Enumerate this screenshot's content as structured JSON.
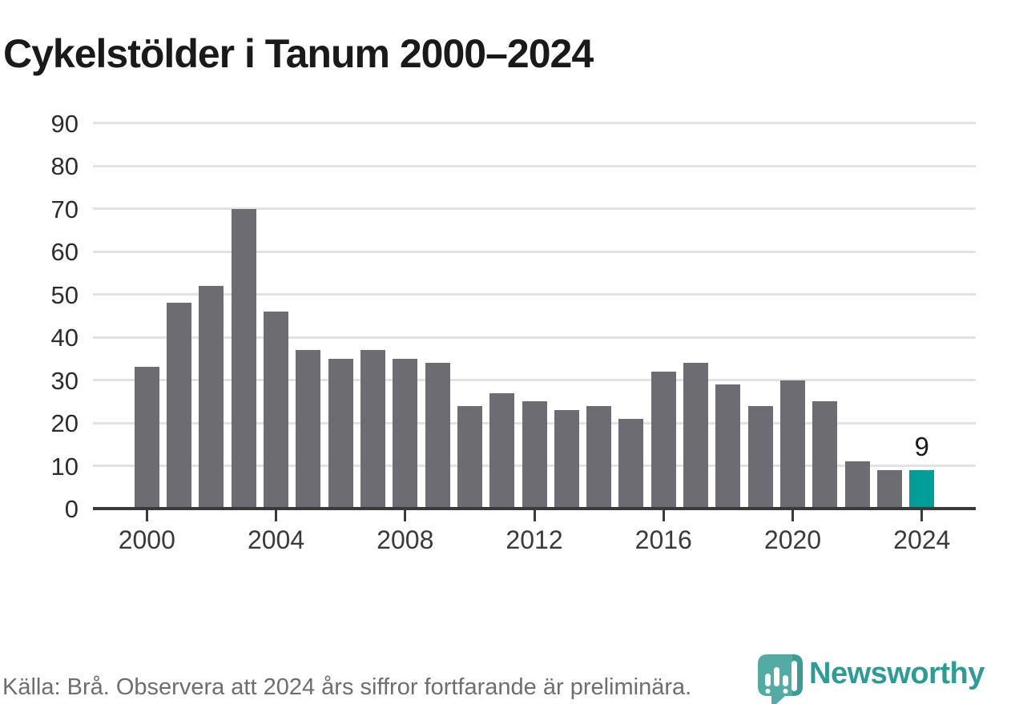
{
  "title": "Cykelstölder i Tanum 2000–2024",
  "chart_data": {
    "type": "bar",
    "categories": [
      2000,
      2001,
      2002,
      2003,
      2004,
      2005,
      2006,
      2007,
      2008,
      2009,
      2010,
      2011,
      2012,
      2013,
      2014,
      2015,
      2016,
      2017,
      2018,
      2019,
      2020,
      2021,
      2022,
      2023,
      2024
    ],
    "values": [
      33,
      48,
      52,
      70,
      46,
      37,
      35,
      37,
      35,
      34,
      24,
      27,
      25,
      23,
      24,
      21,
      32,
      34,
      29,
      24,
      30,
      25,
      11,
      9,
      9
    ],
    "title": "Cykelstölder i Tanum 2000–2024",
    "xlabel": "",
    "ylabel": "",
    "ylim": [
      0,
      90
    ],
    "yticks": [
      0,
      10,
      20,
      30,
      40,
      50,
      60,
      70,
      80,
      90
    ],
    "xticks": [
      2000,
      2004,
      2008,
      2012,
      2016,
      2020,
      2024
    ],
    "grid": true,
    "legend_position": "none",
    "bar_color": "#6c6c72",
    "highlight_index": 24,
    "highlight_color": "#009e96",
    "highlight_value_label": "9"
  },
  "footer": {
    "source_text": "Källa: Brå. Observera att 2024 års siffror fortfarande är preliminära."
  },
  "brand": {
    "name": "Newsworthy",
    "icon": "newsworthy-pin-barchart-icon",
    "text_color": "#2e9c94",
    "icon_color": "#45a49c"
  },
  "colors": {
    "title": "#1a1a1a",
    "axis": "#3a3a3c",
    "gridline": "#e2e2e2",
    "tick_label": "#2d2d2f",
    "footer_text": "#6e6e6e"
  }
}
